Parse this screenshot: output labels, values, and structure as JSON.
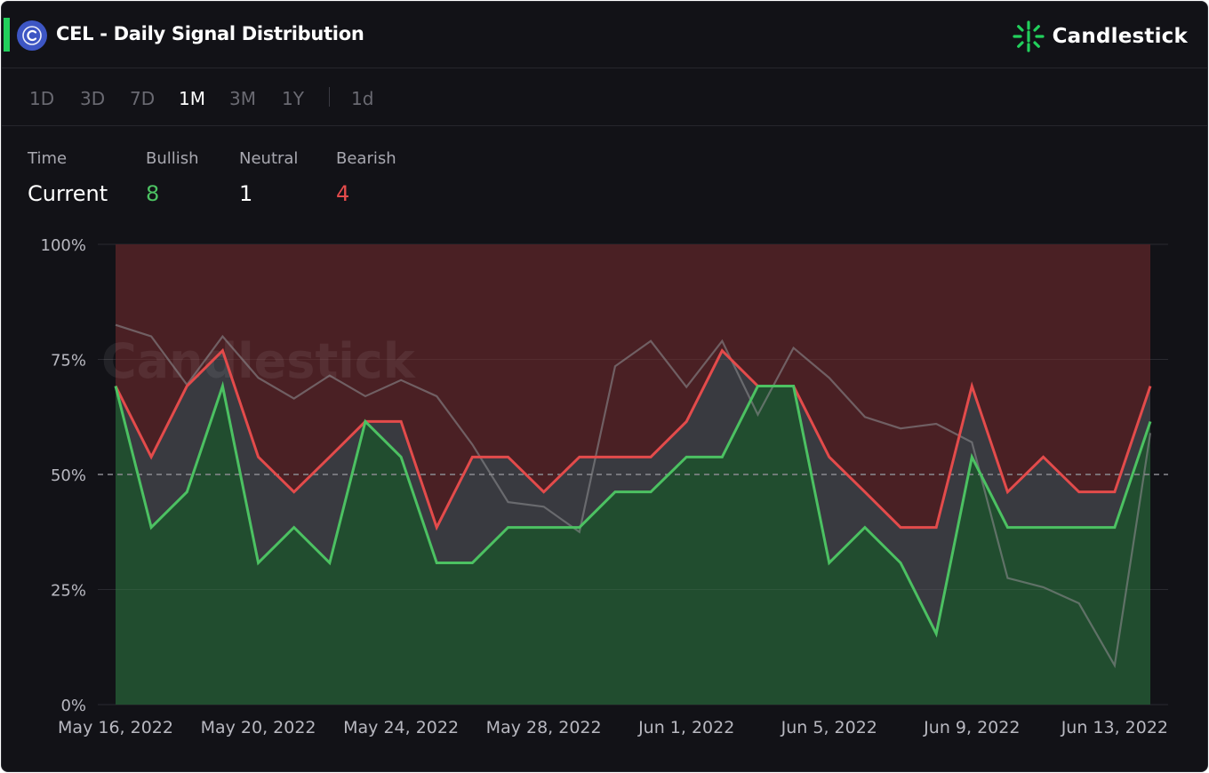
{
  "header": {
    "title": "CEL - Daily Signal Distribution",
    "brand": "Candlestick",
    "coin_icon": "celsius-coin-icon",
    "brand_icon": "candlestick-burst-icon"
  },
  "tabs": [
    {
      "label": "1D"
    },
    {
      "label": "3D"
    },
    {
      "label": "7D"
    },
    {
      "label": "1M",
      "active": true
    },
    {
      "label": "3M"
    },
    {
      "label": "1Y"
    },
    {
      "label": "1d"
    }
  ],
  "summary": {
    "time_label": "Time",
    "time_value": "Current",
    "bullish_label": "Bullish",
    "bullish_value": "8",
    "neutral_label": "Neutral",
    "neutral_value": "1",
    "bearish_label": "Bearish",
    "bearish_value": "4"
  },
  "colors": {
    "bullish": "#4cc162",
    "bearish": "#e34b4b",
    "neutral_band": "#393a40",
    "bull_area": "#214d2f",
    "bear_area": "#4a2024",
    "price_line": "#8a8a8e",
    "background": "#121217"
  },
  "chart_data": {
    "type": "area",
    "watermark": "Candlestick",
    "x": [
      "May 16, 2022",
      "May 17, 2022",
      "May 18, 2022",
      "May 19, 2022",
      "May 20, 2022",
      "May 21, 2022",
      "May 22, 2022",
      "May 23, 2022",
      "May 24, 2022",
      "May 25, 2022",
      "May 26, 2022",
      "May 27, 2022",
      "May 28, 2022",
      "May 29, 2022",
      "May 30, 2022",
      "May 31, 2022",
      "Jun 1, 2022",
      "Jun 2, 2022",
      "Jun 3, 2022",
      "Jun 4, 2022",
      "Jun 5, 2022",
      "Jun 6, 2022",
      "Jun 7, 2022",
      "Jun 8, 2022",
      "Jun 9, 2022",
      "Jun 10, 2022",
      "Jun 11, 2022",
      "Jun 12, 2022",
      "Jun 13, 2022",
      "Jun 14, 2022"
    ],
    "x_ticks": [
      "May 16, 2022",
      "May 20, 2022",
      "May 24, 2022",
      "May 28, 2022",
      "Jun 1, 2022",
      "Jun 5, 2022",
      "Jun 9, 2022",
      "Jun 13, 2022"
    ],
    "ylim": [
      0,
      100
    ],
    "y_ticks": [
      "0%",
      "25%",
      "50%",
      "75%",
      "100%"
    ],
    "reference_line": 50,
    "grid": true,
    "series": [
      {
        "key": "bullish",
        "values": [
          69.2,
          38.5,
          46.2,
          69.2,
          30.8,
          38.5,
          30.8,
          61.5,
          53.8,
          30.8,
          30.8,
          38.5,
          38.5,
          38.5,
          46.2,
          46.2,
          53.8,
          53.8,
          69.2,
          69.2,
          30.8,
          38.5,
          30.8,
          15.4,
          53.8,
          38.5,
          38.5,
          38.5,
          38.5,
          61.5
        ]
      },
      {
        "key": "bullish_plus_neutral",
        "values": [
          69.2,
          53.8,
          69.2,
          76.9,
          53.8,
          46.2,
          53.8,
          61.5,
          61.5,
          38.5,
          53.8,
          53.8,
          46.2,
          53.8,
          53.8,
          53.8,
          61.5,
          76.9,
          69.2,
          69.2,
          53.8,
          46.2,
          38.5,
          38.5,
          69.2,
          46.2,
          53.8,
          46.2,
          46.2,
          69.2
        ]
      },
      {
        "key": "price",
        "values": [
          82.5,
          80.0,
          69.5,
          80.0,
          71.0,
          66.5,
          71.5,
          67.0,
          70.5,
          67.0,
          56.5,
          44.0,
          43.0,
          37.5,
          73.5,
          79.0,
          69.0,
          79.0,
          63.0,
          77.5,
          71.0,
          62.5,
          60.0,
          61.0,
          57.0,
          27.5,
          25.5,
          22.0,
          8.5,
          59.0
        ]
      }
    ]
  }
}
